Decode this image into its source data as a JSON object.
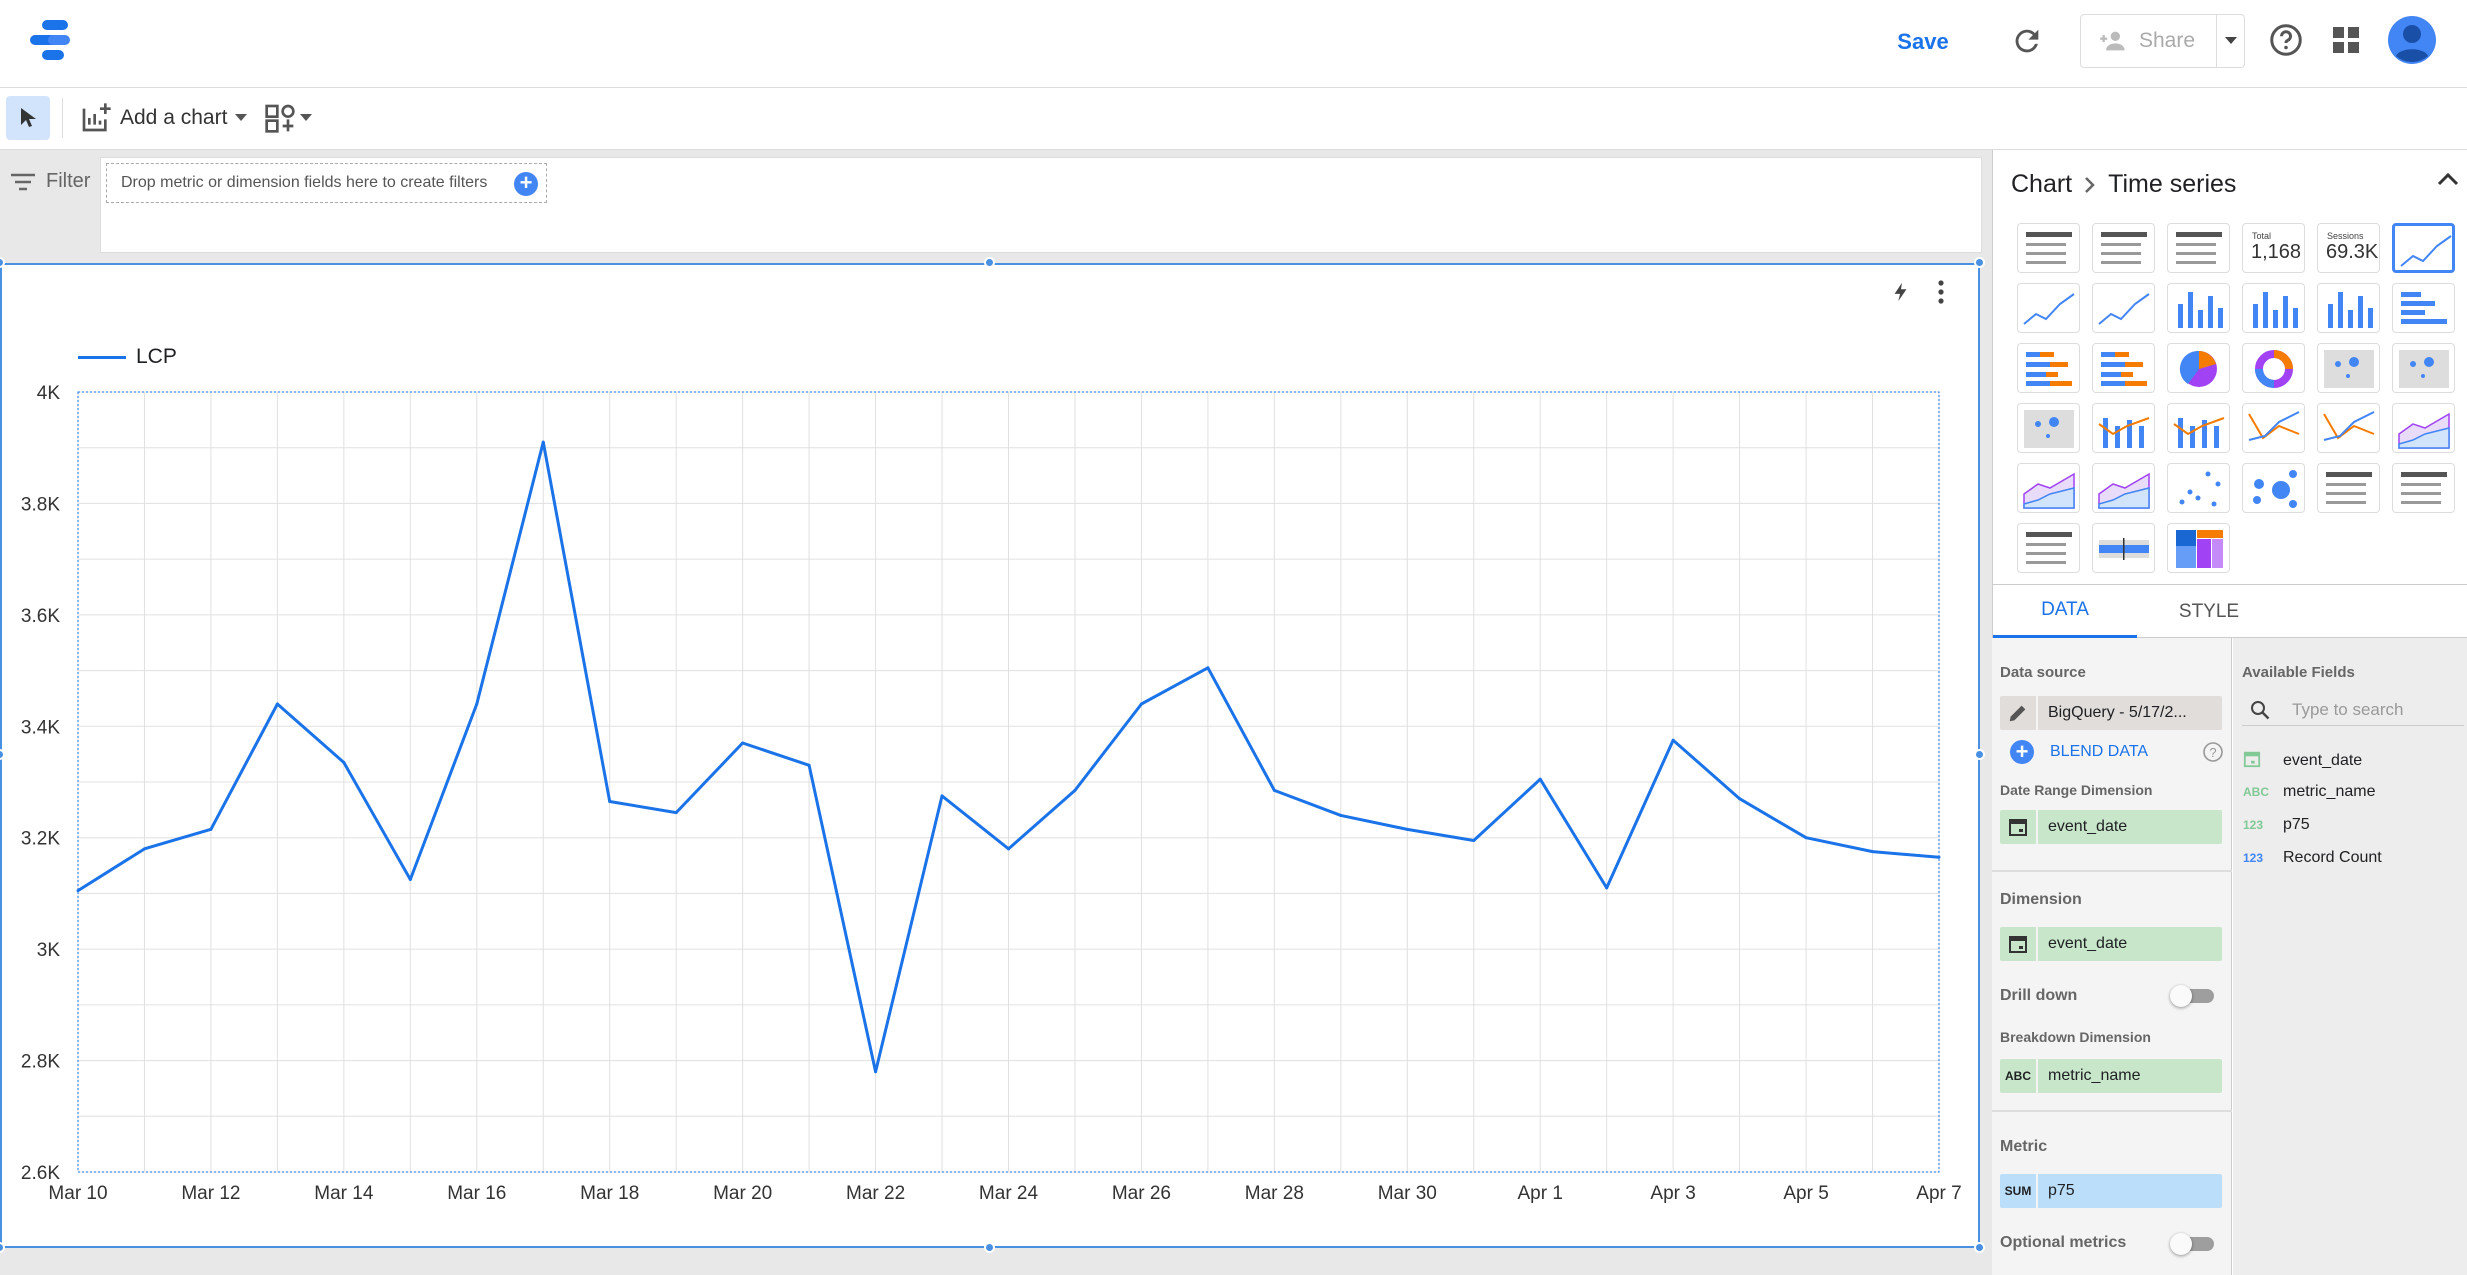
{
  "header": {
    "save_label": "Save",
    "share_label": "Share",
    "icons": [
      "logo",
      "refresh-icon",
      "add-person-icon",
      "caret-down-icon",
      "help-icon",
      "apps-icon",
      "avatar"
    ]
  },
  "toolbar": {
    "add_chart_label": "Add a chart"
  },
  "filter": {
    "label": "Filter",
    "drop_hint": "Drop metric or dimension fields here to create filters"
  },
  "panel": {
    "breadcrumb_root": "Chart",
    "breadcrumb_current": "Time series",
    "gallery": [
      {
        "icon": "table-icon"
      },
      {
        "icon": "table-bars-icon"
      },
      {
        "icon": "table-heatmap-icon"
      },
      {
        "icon": "scorecard-icon",
        "label": "Total",
        "value": "1,168"
      },
      {
        "icon": "scorecard-compact-icon",
        "label": "Sessions",
        "value": "69.3K"
      },
      {
        "icon": "time-series-icon",
        "selected": true
      },
      {
        "icon": "sparkline-icon"
      },
      {
        "icon": "smoothed-line-icon"
      },
      {
        "icon": "column-chart-icon"
      },
      {
        "icon": "stacked-column-icon"
      },
      {
        "icon": "100-stacked-column-icon"
      },
      {
        "icon": "bar-chart-icon"
      },
      {
        "icon": "stacked-bar-icon"
      },
      {
        "icon": "100-stacked-bar-icon"
      },
      {
        "icon": "pie-chart-icon"
      },
      {
        "icon": "donut-chart-icon"
      },
      {
        "icon": "bubble-map-icon"
      },
      {
        "icon": "filled-map-icon"
      },
      {
        "icon": "geo-chart-icon"
      },
      {
        "icon": "combo-chart-icon"
      },
      {
        "icon": "stacked-combo-icon"
      },
      {
        "icon": "line-chart-icon"
      },
      {
        "icon": "smoothed-line-chart-icon"
      },
      {
        "icon": "area-chart-icon"
      },
      {
        "icon": "stacked-area-icon"
      },
      {
        "icon": "100-stacked-area-icon"
      },
      {
        "icon": "scatter-chart-icon"
      },
      {
        "icon": "bubble-chart-icon"
      },
      {
        "icon": "pivot-table-icon"
      },
      {
        "icon": "pivot-table-bars-icon"
      },
      {
        "icon": "pivot-table-heatmap-icon"
      },
      {
        "icon": "bullet-chart-icon"
      },
      {
        "icon": "treemap-icon"
      }
    ],
    "tabs": [
      {
        "label": "DATA",
        "active": true
      },
      {
        "label": "STYLE",
        "active": false
      }
    ],
    "data_source_label": "Data source",
    "data_source": "BigQuery - 5/17/2...",
    "blend_label": "BLEND DATA",
    "date_range_label": "Date Range Dimension",
    "date_range_field": "event_date",
    "dimension_label": "Dimension",
    "dimension_field": "event_date",
    "drill_down_label": "Drill down",
    "drill_down": false,
    "breakdown_label": "Breakdown Dimension",
    "breakdown_type": "ABC",
    "breakdown_field": "metric_name",
    "metric_label": "Metric",
    "metric_agg": "SUM",
    "metric_field": "p75",
    "optional_metrics_label": "Optional metrics",
    "optional_metrics": false,
    "available_fields_label": "Available Fields",
    "search_placeholder": "Type to search",
    "fields": [
      {
        "type": "date",
        "name": "event_date"
      },
      {
        "type": "ABC",
        "name": "metric_name"
      },
      {
        "type": "123",
        "name": "p75"
      },
      {
        "type": "123",
        "name": "Record Count"
      }
    ]
  },
  "chart_data": {
    "type": "line",
    "series": [
      {
        "name": "LCP",
        "color": "#1a73e8",
        "values": [
          3105,
          3180,
          3215,
          3440,
          3335,
          3125,
          3440,
          3910,
          3265,
          3245,
          3370,
          3330,
          2780,
          3275,
          3180,
          3285,
          3440,
          3505,
          3285,
          3240,
          3215,
          3195,
          3305,
          3110,
          3375,
          3270,
          3200,
          3175,
          3165
        ]
      }
    ],
    "x": [
      "Mar 10",
      "Mar 11",
      "Mar 12",
      "Mar 13",
      "Mar 14",
      "Mar 15",
      "Mar 16",
      "Mar 17",
      "Mar 18",
      "Mar 19",
      "Mar 20",
      "Mar 21",
      "Mar 22",
      "Mar 23",
      "Mar 24",
      "Mar 25",
      "Mar 26",
      "Mar 27",
      "Mar 28",
      "Mar 29",
      "Mar 30",
      "Mar 31",
      "Apr 1",
      "Apr 2",
      "Apr 3",
      "Apr 4",
      "Apr 5",
      "Apr 6",
      "Apr 7"
    ],
    "x_tick_labels": [
      "Mar 10",
      "Mar 12",
      "Mar 14",
      "Mar 16",
      "Mar 18",
      "Mar 20",
      "Mar 22",
      "Mar 24",
      "Mar 26",
      "Mar 28",
      "Mar 30",
      "Apr 1",
      "Apr 3",
      "Apr 5",
      "Apr 7"
    ],
    "y_tick_labels": [
      "2.6K",
      "2.8K",
      "3K",
      "3.2K",
      "3.4K",
      "3.6K",
      "3.8K",
      "4K"
    ],
    "ylim": [
      2600,
      4000
    ],
    "grid": true,
    "legend": "top-left"
  }
}
